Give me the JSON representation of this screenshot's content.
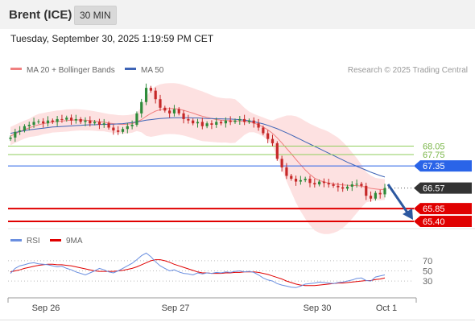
{
  "header": {
    "instrument": "Brent (ICE)",
    "interval": "30 MIN",
    "timestamp": "Tuesday, September 30, 2025 1:19:59 PM CET"
  },
  "legend": {
    "ma20_bb": "MA 20 + Bollinger Bands",
    "ma50": "MA 50",
    "copyright": "Research © 2025 Trading Central"
  },
  "rsi_legend": {
    "rsi": "RSI",
    "ma9": "9MA"
  },
  "colors": {
    "ma20": "#f08080",
    "ma50": "#3e64b6",
    "bollinger_fill": "#fde1e1",
    "resistance": "#8fce5c",
    "pivot": "#2a64e8",
    "support": "#e00000",
    "current": "#333333",
    "rsi": "#6a8fe0",
    "rsi_ma": "#e00000",
    "candle_up": "#2e8b3a",
    "candle_down": "#c62828"
  },
  "chart_data": {
    "type": "candlestick",
    "ylim": [
      65.2,
      70.5
    ],
    "x_tick_labels": [
      "Sep 26",
      "Sep 27",
      "Sep 30",
      "Oct 1"
    ],
    "levels": [
      {
        "value": 68.05,
        "label": "68.05",
        "kind": "resistance"
      },
      {
        "value": 67.75,
        "label": "67.75",
        "kind": "resistance"
      },
      {
        "value": 67.35,
        "label": "67.35",
        "kind": "pivot"
      },
      {
        "value": 66.57,
        "label": "66.57",
        "kind": "current"
      },
      {
        "value": 65.85,
        "label": "65.85",
        "kind": "support"
      },
      {
        "value": 65.4,
        "label": "65.40",
        "kind": "support"
      }
    ],
    "close": [
      68.35,
      68.55,
      68.6,
      68.75,
      68.8,
      68.9,
      68.92,
      68.85,
      68.95,
      68.9,
      69.0,
      68.98,
      69.05,
      68.95,
      69.0,
      68.9,
      68.95,
      68.85,
      68.9,
      68.8,
      68.85,
      68.7,
      68.6,
      68.55,
      68.65,
      68.75,
      68.8,
      69.2,
      69.6,
      70.1,
      70.0,
      69.7,
      69.4,
      69.3,
      69.2,
      69.35,
      69.2,
      69.0,
      68.95,
      68.85,
      68.9,
      68.75,
      68.85,
      68.8,
      68.9,
      68.85,
      68.95,
      68.9,
      68.95,
      69.0,
      68.9,
      68.95,
      68.85,
      68.7,
      68.5,
      68.3,
      68.15,
      67.6,
      67.3,
      67.0,
      66.9,
      66.8,
      66.85,
      66.9,
      66.75,
      66.7,
      66.8,
      66.75,
      66.7,
      66.65,
      66.6,
      66.55,
      66.62,
      66.7,
      66.72,
      66.65,
      66.3,
      66.2,
      66.4,
      66.35,
      66.57
    ],
    "ma20": [
      68.4,
      68.48,
      68.56,
      68.63,
      68.69,
      68.75,
      68.8,
      68.84,
      68.87,
      68.9,
      68.92,
      68.93,
      68.95,
      68.96,
      68.97,
      68.97,
      68.96,
      68.95,
      68.93,
      68.91,
      68.89,
      68.86,
      68.84,
      68.82,
      68.81,
      68.82,
      68.84,
      68.9,
      68.98,
      69.1,
      69.2,
      69.28,
      69.33,
      69.36,
      69.37,
      69.37,
      69.35,
      69.31,
      69.26,
      69.21,
      69.15,
      69.1,
      69.06,
      69.02,
      68.98,
      68.96,
      68.95,
      68.94,
      68.93,
      68.93,
      68.92,
      68.9,
      68.86,
      68.8,
      68.72,
      68.62,
      68.5,
      68.34,
      68.16,
      67.97,
      67.78,
      67.58,
      67.39,
      67.21,
      67.05,
      66.92,
      66.84,
      66.79,
      66.75,
      66.72,
      66.7,
      66.68,
      66.67,
      66.66,
      66.66,
      66.64,
      66.6,
      66.56,
      66.54,
      66.52,
      66.52
    ],
    "ma50": [
      68.5,
      68.53,
      68.56,
      68.59,
      68.62,
      68.64,
      68.66,
      68.68,
      68.7,
      68.72,
      68.73,
      68.74,
      68.75,
      68.76,
      68.77,
      68.78,
      68.79,
      68.8,
      68.8,
      68.81,
      68.81,
      68.82,
      68.82,
      68.83,
      68.84,
      68.86,
      68.88,
      68.9,
      68.93,
      68.96,
      68.98,
      69.0,
      69.02,
      69.03,
      69.04,
      69.05,
      69.05,
      69.05,
      69.05,
      69.04,
      69.04,
      69.03,
      69.02,
      69.02,
      69.01,
      69.01,
      69.0,
      69.0,
      68.99,
      68.98,
      68.96,
      68.94,
      68.91,
      68.87,
      68.83,
      68.78,
      68.72,
      68.66,
      68.59,
      68.52,
      68.44,
      68.36,
      68.28,
      68.2,
      68.12,
      68.04,
      67.96,
      67.88,
      67.8,
      67.72,
      67.64,
      67.56,
      67.48,
      67.41,
      67.34,
      67.27,
      67.2,
      67.13,
      67.07,
      67.01,
      66.96
    ],
    "rsi": {
      "ylim": [
        0,
        100
      ],
      "levels": [
        70,
        50,
        30
      ],
      "level_labels": [
        "70",
        "50",
        "30"
      ],
      "rsi": [
        45,
        55,
        60,
        62,
        65,
        66,
        64,
        63,
        62,
        60,
        58,
        59,
        55,
        52,
        48,
        45,
        42,
        46,
        50,
        55,
        52,
        48,
        46,
        50,
        55,
        60,
        65,
        72,
        80,
        85,
        78,
        68,
        60,
        55,
        50,
        52,
        48,
        45,
        44,
        42,
        46,
        44,
        46,
        45,
        47,
        46,
        48,
        47,
        49,
        50,
        48,
        49,
        47,
        42,
        36,
        32,
        30,
        25,
        22,
        20,
        18,
        17,
        20,
        24,
        25,
        26,
        28,
        27,
        26,
        25,
        27,
        28,
        30,
        32,
        35,
        36,
        31,
        30,
        38,
        40,
        42
      ],
      "ma9": [
        48,
        50,
        52,
        55,
        57,
        59,
        61,
        62,
        63,
        63,
        62,
        62,
        61,
        60,
        58,
        56,
        54,
        52,
        50,
        49,
        49,
        49,
        49,
        50,
        51,
        53,
        55,
        58,
        62,
        66,
        70,
        72,
        72,
        70,
        67,
        63,
        60,
        57,
        54,
        51,
        48,
        46,
        46,
        45,
        45,
        45,
        46,
        46,
        47,
        47,
        48,
        48,
        48,
        47,
        45,
        43,
        40,
        37,
        34,
        30,
        27,
        24,
        22,
        21,
        21,
        21,
        22,
        23,
        24,
        25,
        26,
        26,
        27,
        28,
        29,
        30,
        31,
        31,
        33,
        34,
        36
      ]
    }
  }
}
